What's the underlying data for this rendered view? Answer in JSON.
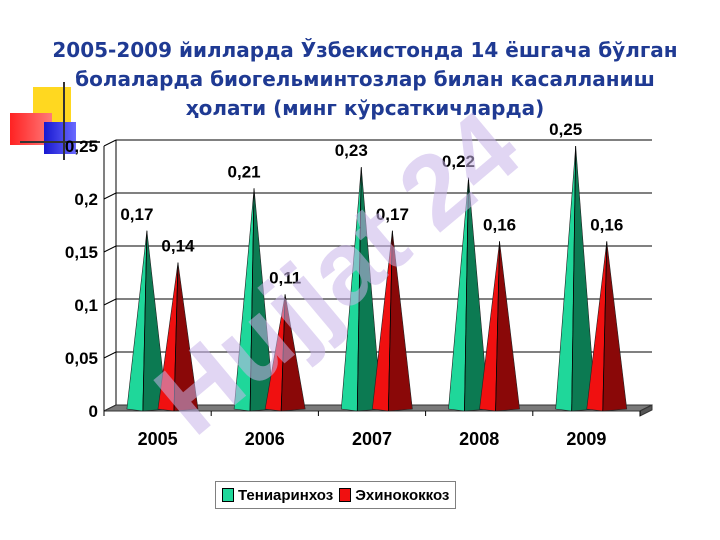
{
  "title_lines": [
    "2005-2009 йилларда Ўзбекистонда 14 ёшгача бўлган",
    "болаларда биогельминтозлар билан касалланиш",
    "ҳолати (минг кўрсаткичларда)"
  ],
  "watermark_text": "Hujjat 24",
  "colors": {
    "title": "#1f3a93",
    "series1": "#1fd79a",
    "series1_dark": "#0c7a52",
    "series2": "#f01010",
    "series2_dark": "#8a0808",
    "floor": "#7a7a7a",
    "watermark": "#c8b4ea",
    "deco_yellow": "#ffd820",
    "deco_red": "#ff2222",
    "deco_blue": "#2828e0"
  },
  "chart_data": {
    "type": "bar",
    "style": "3d-cone",
    "categories": [
      "2005",
      "2006",
      "2007",
      "2008",
      "2009"
    ],
    "series": [
      {
        "name": "Тениаринхоз",
        "values": [
          0.17,
          0.21,
          0.23,
          0.22,
          0.25
        ]
      },
      {
        "name": "Эхинококкоз",
        "values": [
          0.14,
          0.11,
          0.17,
          0.16,
          0.16
        ]
      }
    ],
    "value_labels": [
      [
        "0,17",
        "0,21",
        "0,23",
        "0,22",
        "0,25"
      ],
      [
        "0,14",
        "0,11",
        "0,17",
        "0,16",
        "0,16"
      ]
    ],
    "ylim": [
      0,
      0.25
    ],
    "yticks": [
      0,
      0.05,
      0.1,
      0.15,
      0.2,
      0.25
    ],
    "ytick_labels": [
      "0",
      "0,05",
      "0,1",
      "0,15",
      "0,2",
      "0,25"
    ],
    "grid": true,
    "legend_position": "bottom"
  }
}
